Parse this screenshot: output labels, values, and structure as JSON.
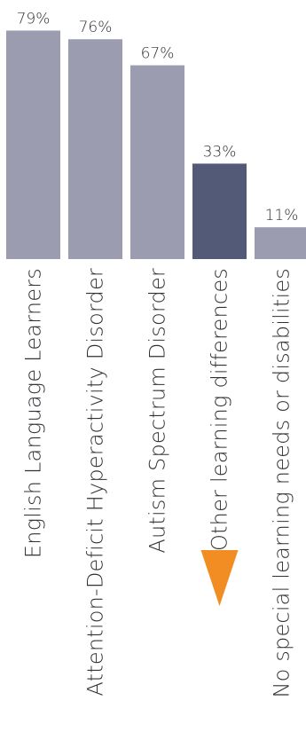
{
  "chart_data": {
    "type": "bar",
    "title": "",
    "xlabel": "",
    "ylabel": "",
    "ylim": [
      0,
      100
    ],
    "categories": [
      "English Language Learners",
      "Attention-Deficit Hyperactivity Disorder",
      "Autism Spectrum Disorder",
      "Other learning differences",
      "No special learning needs or disabilities"
    ],
    "values": [
      79,
      76,
      67,
      33,
      11
    ],
    "value_labels": [
      "79%",
      "76%",
      "67%",
      "33%",
      "11%"
    ],
    "highlighted_category": "Other learning differences",
    "colors": {
      "bar": "#9b9caf",
      "highlight_bar": "#525a78",
      "marker": "#f18d22",
      "text": "#303035"
    },
    "highlight_marker_icon": "down-triangle-marker-icon",
    "grid": false,
    "legend": "none"
  }
}
